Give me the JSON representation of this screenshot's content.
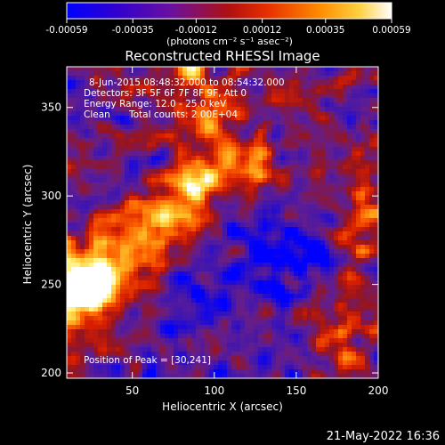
{
  "colorbar": {
    "ticks": [
      -0.00059,
      -0.00035,
      -0.00012,
      0.00012,
      0.00035,
      0.00059
    ],
    "tick_labels": [
      "-0.00059",
      "-0.00035",
      "-0.00012",
      "0.00012",
      "0.00035",
      "0.00059"
    ],
    "unit_label": "(photons cm⁻² s⁻¹ asec⁻²)",
    "colors": [
      "#0000ff",
      "#4b00b4",
      "#8c2a5a",
      "#cc2000",
      "#ff6a00",
      "#ffd040",
      "#ffffff"
    ]
  },
  "chart_data": {
    "type": "heatmap",
    "title": "Reconstructed RHESSI Image",
    "xlabel": "Heliocentric X (arcsec)",
    "ylabel": "Heliocentric Y (arcsec)",
    "xlim": [
      10,
      200
    ],
    "ylim": [
      197,
      373
    ],
    "xticks": [
      50,
      100,
      150,
      200
    ],
    "yticks": [
      200,
      250,
      300,
      350
    ],
    "annotations": {
      "time_range": "8-Jun-2015 08:48:32.000 to 08:54:32.000",
      "detectors": "Detectors: 3F 5F 6F 7F 8F 9F, Att 0",
      "energy_range": "Energy Range: 12.0 - 25.0 keV",
      "method": "Clean",
      "total_counts": "Total counts: 2.00E+04",
      "peak_position": "Position of Peak = [30,241]"
    },
    "peak": {
      "x": 30,
      "y": 241
    },
    "grid": false
  },
  "footer": {
    "timestamp": "21-May-2022 16:36"
  }
}
